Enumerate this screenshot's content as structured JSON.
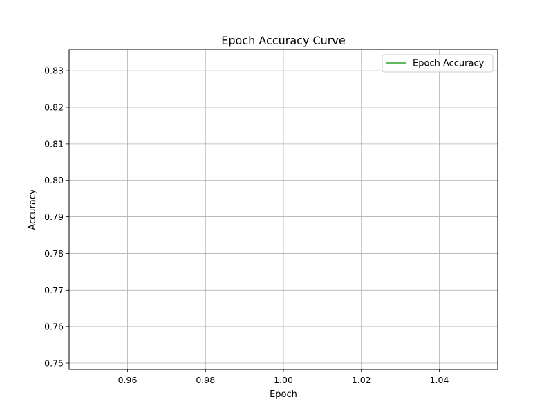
{
  "chart_data": {
    "type": "line",
    "title": "Epoch Accuracy Curve",
    "xlabel": "Epoch",
    "ylabel": "Accuracy",
    "xlim": [
      0.945,
      1.055
    ],
    "ylim": [
      0.7483,
      0.8357
    ],
    "xticks": [
      0.96,
      0.98,
      1.0,
      1.02,
      1.04
    ],
    "xtick_labels": [
      "0.96",
      "0.98",
      "1.00",
      "1.02",
      "1.04"
    ],
    "yticks": [
      0.75,
      0.76,
      0.77,
      0.78,
      0.79,
      0.8,
      0.81,
      0.82,
      0.83
    ],
    "ytick_labels": [
      "0.75",
      "0.76",
      "0.77",
      "0.78",
      "0.79",
      "0.80",
      "0.81",
      "0.82",
      "0.83"
    ],
    "grid": true,
    "legend_position": "top-right",
    "series": [
      {
        "name": "Epoch Accuracy",
        "color": "#2ca02c",
        "x": [],
        "y": []
      }
    ]
  }
}
